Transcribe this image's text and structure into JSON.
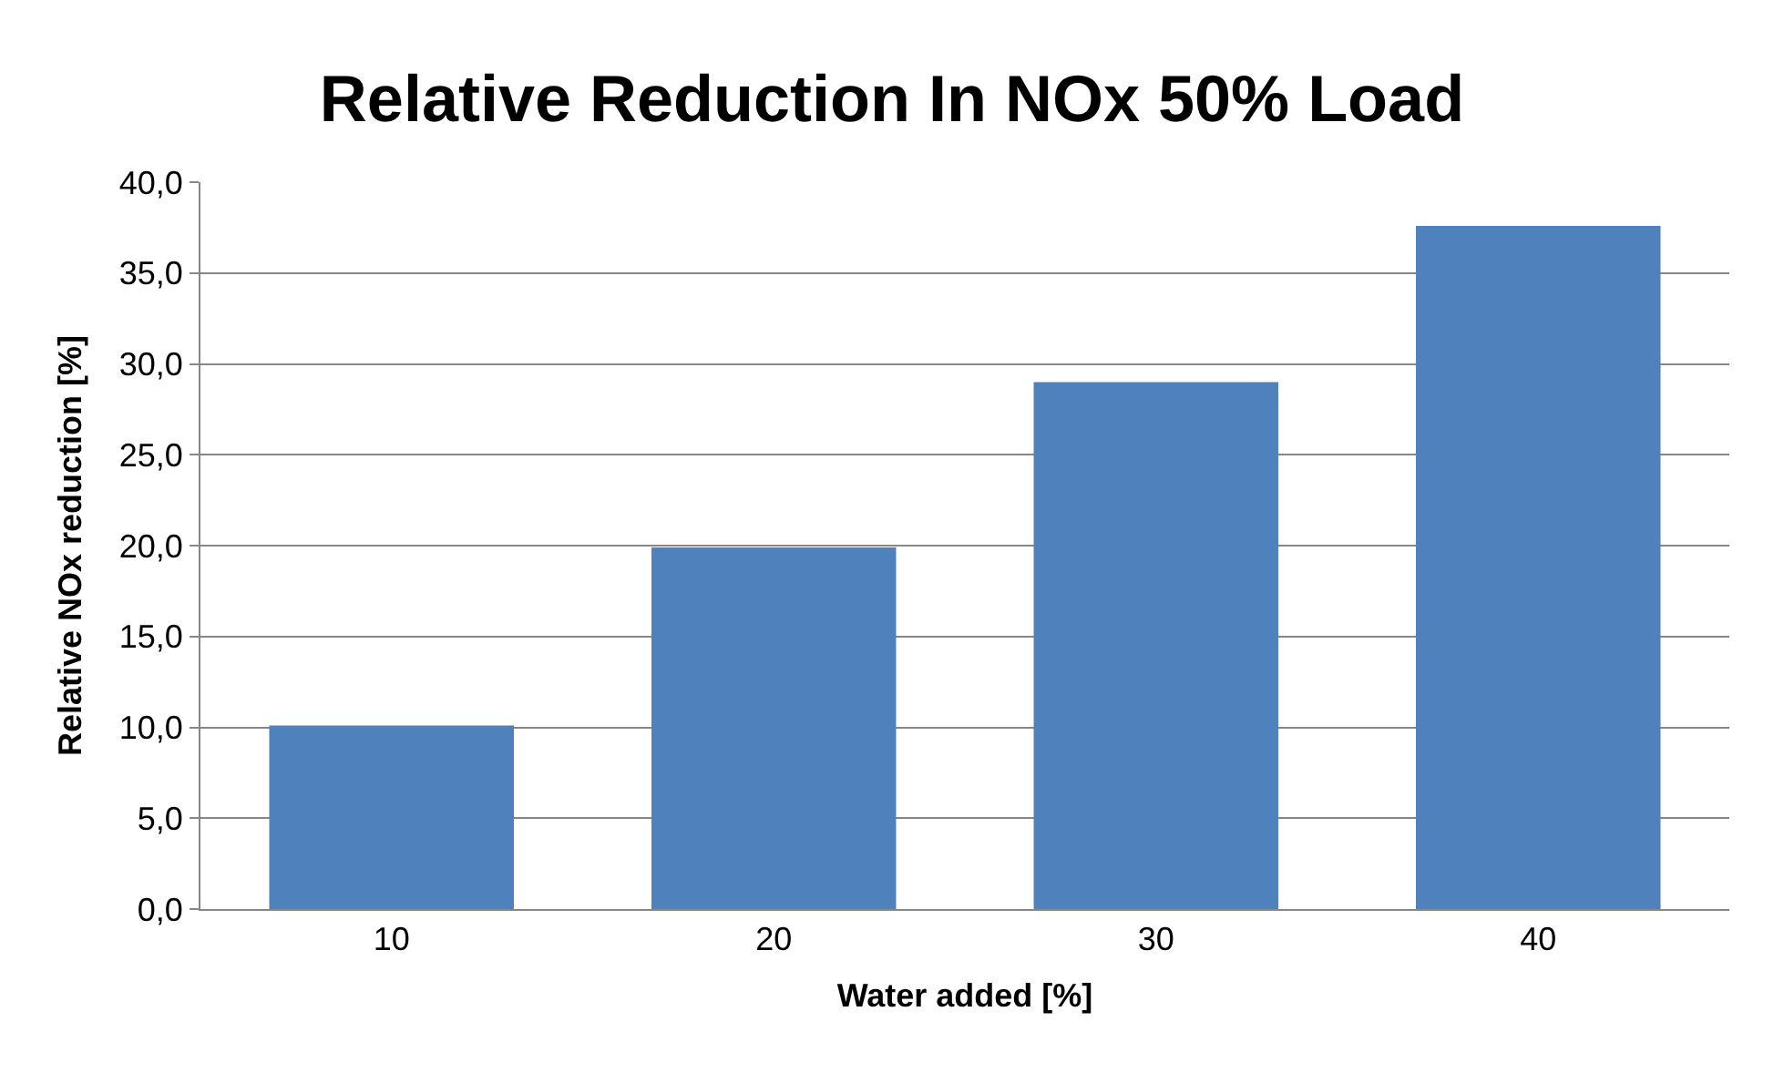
{
  "chart_data": {
    "type": "bar",
    "title": "Relative Reduction In NOx 50% Load",
    "xlabel": "Water added [%]",
    "ylabel": "Relative NOx reduction [%]",
    "categories": [
      "10",
      "20",
      "30",
      "40"
    ],
    "series": [
      {
        "color": "#4f81bd",
        "values": [
          10.1,
          19.9,
          29.0,
          37.6
        ]
      }
    ],
    "ylim": [
      0,
      40
    ],
    "yticks": [
      {
        "value": 0,
        "label": "0,0"
      },
      {
        "value": 5,
        "label": "5,0"
      },
      {
        "value": 10,
        "label": "10,0"
      },
      {
        "value": 15,
        "label": "15,0"
      },
      {
        "value": 20,
        "label": "20,0"
      },
      {
        "value": 25,
        "label": "25,0"
      },
      {
        "value": 30,
        "label": "30,0"
      },
      {
        "value": 35,
        "label": "35,0"
      },
      {
        "value": 40,
        "label": "40,0"
      }
    ],
    "grid": "y"
  }
}
